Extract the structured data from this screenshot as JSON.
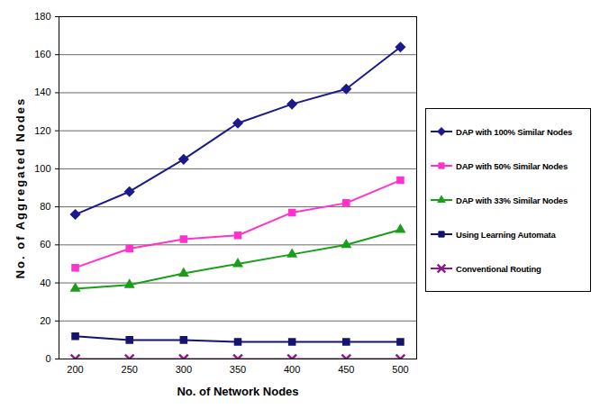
{
  "chart_data": {
    "type": "line",
    "x_label": "No. of Network Nodes",
    "y_label": "No. of Aggregated Nodes",
    "x": [
      200,
      250,
      300,
      350,
      400,
      450,
      500
    ],
    "xlim": [
      185,
      515
    ],
    "xticks": [
      200,
      250,
      300,
      350,
      400,
      450,
      500
    ],
    "ylim": [
      0,
      180
    ],
    "yticks": [
      0,
      20,
      40,
      60,
      80,
      100,
      120,
      140,
      160,
      180
    ],
    "grid": true,
    "legend": "right",
    "series": [
      {
        "name": "DAP with 100% Similar Nodes",
        "color": "#1a1a8c",
        "marker": "diamond",
        "values": [
          76,
          88,
          105,
          124,
          134,
          142,
          164
        ]
      },
      {
        "name": "DAP with 50% Similar Nodes",
        "color": "#ff33cc",
        "marker": "square",
        "values": [
          48,
          58,
          63,
          65,
          77,
          82,
          94
        ]
      },
      {
        "name": "DAP with 33% Similar Nodes",
        "color": "#1a9e1a",
        "marker": "triangle",
        "values": [
          37,
          39,
          45,
          50,
          55,
          60,
          68
        ]
      },
      {
        "name": "Using Learning Automata",
        "color": "#141470",
        "marker": "square",
        "values": [
          12,
          10,
          10,
          9,
          9,
          9,
          9
        ]
      },
      {
        "name": "Conventional Routing",
        "color": "#8b1a8b",
        "marker": "times",
        "values": [
          0,
          0,
          0,
          0,
          0,
          0,
          0
        ]
      }
    ]
  }
}
